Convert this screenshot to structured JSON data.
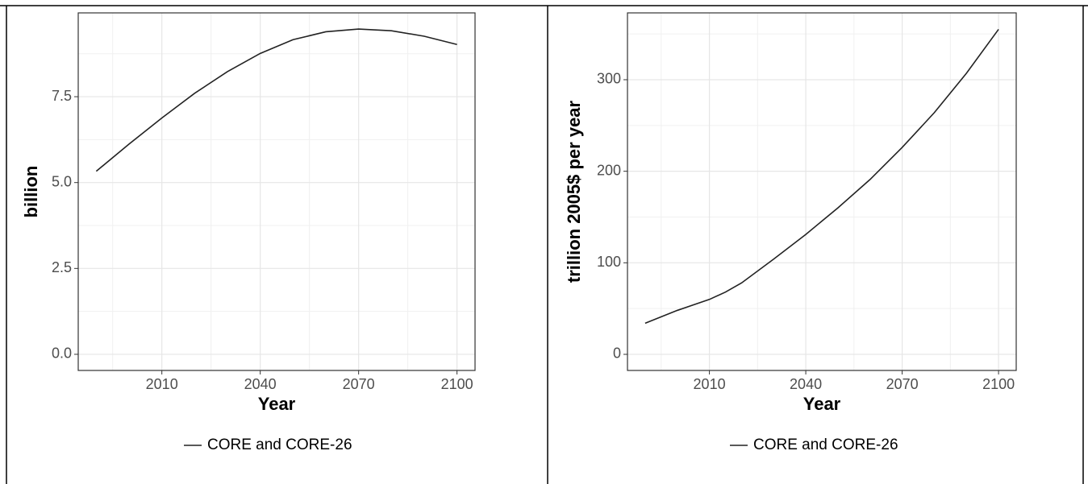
{
  "chart_data": [
    {
      "type": "line",
      "x_label": "Year",
      "y_label": "billion",
      "x": [
        1990,
        2000,
        2010,
        2020,
        2030,
        2040,
        2050,
        2060,
        2070,
        2080,
        2090,
        2100
      ],
      "series": [
        {
          "name": "CORE and CORE-26",
          "color": "#222222",
          "values": [
            5.33,
            6.12,
            6.88,
            7.6,
            8.23,
            8.76,
            9.16,
            9.39,
            9.47,
            9.42,
            9.26,
            9.02
          ]
        }
      ],
      "xlim": [
        1984.5,
        2105.5
      ],
      "ylim": [
        -0.47,
        9.94
      ],
      "xticks": [
        2010,
        2040,
        2070,
        2100
      ],
      "yticks": [
        {
          "value": 0,
          "label": "0.0"
        },
        2.5,
        {
          "value": 5,
          "label": "5.0"
        },
        {
          "value": 7.5,
          "label": "7.5"
        }
      ],
      "grid": true,
      "legend": "bottom"
    },
    {
      "type": "line",
      "x_label": "Year",
      "y_label": "trillion 2005$ per year",
      "x": [
        1990,
        2000,
        2010,
        2015,
        2020,
        2030,
        2040,
        2050,
        2060,
        2070,
        2080,
        2090,
        2100
      ],
      "series": [
        {
          "name": "CORE and CORE-26",
          "color": "#222222",
          "values": [
            34,
            48,
            60,
            68,
            78,
            104,
            131,
            160,
            191,
            226,
            264,
            307,
            355
          ]
        }
      ],
      "xlim": [
        1984.5,
        2105.5
      ],
      "ylim": [
        -17.6,
        373
      ],
      "xticks": [
        2010,
        2040,
        2070,
        2100
      ],
      "yticks": [
        0,
        100,
        200,
        300
      ],
      "grid": true,
      "legend": "bottom"
    }
  ]
}
